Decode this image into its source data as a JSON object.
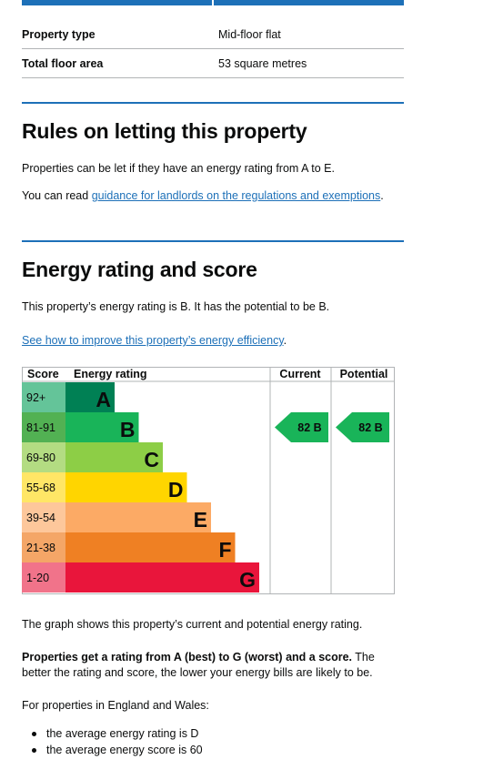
{
  "summary": {
    "rows": [
      {
        "label": "Property type",
        "value": "Mid-floor flat"
      },
      {
        "label": "Total floor area",
        "value": "53 square metres"
      }
    ]
  },
  "letting": {
    "title": "Rules on letting this property",
    "text": "Properties can be let if they have an energy rating from A to E.",
    "read_prefix": "You can read ",
    "read_link": "guidance for landlords on the regulations and exemptions",
    "read_suffix": "."
  },
  "energy": {
    "title": "Energy rating and score",
    "text": "This property’s energy rating is B. It has the potential to be B.",
    "improve_link": "See how to improve this property’s energy efficiency",
    "improve_suffix": ".",
    "graph_text": "The graph shows this property’s current and potential energy rating.",
    "rating_bold": "Properties get a rating from A (best) to G (worst) and a score.",
    "rating_rest": " The better the rating and score, the lower your energy bills are likely to be.",
    "region_text": "For properties in England and Wales:",
    "bullets": [
      "the average energy rating is D",
      "the average energy score is 60"
    ]
  },
  "chart": {
    "headers": {
      "score": "Score",
      "rating": "Energy rating",
      "current": "Current",
      "potential": "Potential"
    },
    "bands": [
      {
        "letter": "A",
        "range": "92+",
        "color": "#008054",
        "score_bg": "#64c499"
      },
      {
        "letter": "B",
        "range": "81-91",
        "color": "#19b459",
        "score_bg": "#52b153"
      },
      {
        "letter": "C",
        "range": "69-80",
        "color": "#8dce46",
        "score_bg": "#b3dc82"
      },
      {
        "letter": "D",
        "range": "55-68",
        "color": "#ffd500",
        "score_bg": "#ffe666"
      },
      {
        "letter": "E",
        "range": "39-54",
        "color": "#fcaa65",
        "score_bg": "#fdc79b"
      },
      {
        "letter": "F",
        "range": "21-38",
        "color": "#ef8023",
        "score_bg": "#f4a667"
      },
      {
        "letter": "G",
        "range": "1-20",
        "color": "#e9153b",
        "score_bg": "#f1738a"
      }
    ],
    "current": {
      "score": 82,
      "band": "B",
      "label": "82 B"
    },
    "potential": {
      "score": 82,
      "band": "B",
      "label": "82 B"
    },
    "pointer_color": "#19b459"
  }
}
